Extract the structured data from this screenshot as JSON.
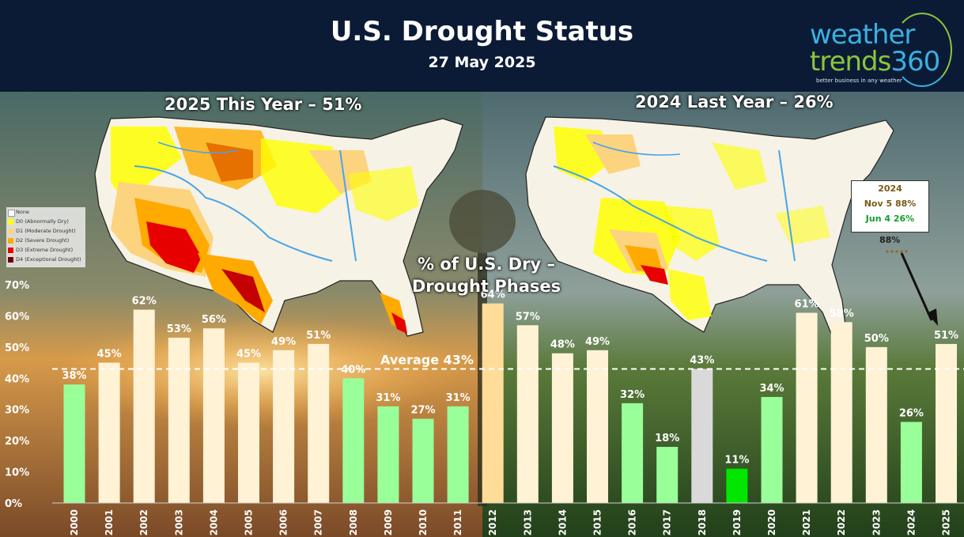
{
  "header": {
    "title": "U.S. Drought Status",
    "subtitle": "27 May 2025",
    "logo_line1": "weather",
    "logo_line2a": "trends",
    "logo_line2b": "360",
    "logo_tagline": "better business in any weather"
  },
  "maps": {
    "left_label": "2025 This Year – 51%",
    "right_label": "2024 Last Year – 26%"
  },
  "legend": {
    "items": [
      {
        "label": "None",
        "color": "#ffffff"
      },
      {
        "label": "D0 (Abnormally Dry)",
        "color": "#ffff00"
      },
      {
        "label": "D1 (Moderate Drought)",
        "color": "#fcd37f"
      },
      {
        "label": "D2 (Severe Drought)",
        "color": "#ffaa00"
      },
      {
        "label": "D3 (Extreme Drought)",
        "color": "#e60000"
      },
      {
        "label": "D4 (Exceptional Drought)",
        "color": "#730000"
      }
    ]
  },
  "callout": {
    "year": "2024",
    "line1": "Nov 5 88%",
    "line2": "Jun 4 26%",
    "peak_label": "88%"
  },
  "chart_data": {
    "type": "bar",
    "title": "% of U.S. Dry – Drought Phases",
    "categories": [
      "2000",
      "2001",
      "2002",
      "2003",
      "2004",
      "2005",
      "2006",
      "2007",
      "2008",
      "2009",
      "2010",
      "2011",
      "2012",
      "2013",
      "2014",
      "2015",
      "2016",
      "2017",
      "2018",
      "2019",
      "2020",
      "2021",
      "2022",
      "2023",
      "2024",
      "2025"
    ],
    "values": [
      38,
      45,
      62,
      53,
      56,
      45,
      49,
      51,
      40,
      31,
      27,
      31,
      64,
      57,
      48,
      49,
      32,
      18,
      43,
      11,
      34,
      61,
      58,
      50,
      26,
      51
    ],
    "value_labels": [
      "38%",
      "45%",
      "62%",
      "53%",
      "56%",
      "45%",
      "49%",
      "51%",
      "40%",
      "31%",
      "27%",
      "31%",
      "64%",
      "57%",
      "48%",
      "49%",
      "32%",
      "18%",
      "43%",
      "11%",
      "34%",
      "61%",
      "58%",
      "50%",
      "26%",
      "51%"
    ],
    "bar_colors": [
      "#99ff99",
      "#fff2d5",
      "#fff2d5",
      "#fff2d5",
      "#fff2d5",
      "#fff2d5",
      "#fff2d5",
      "#fff2d5",
      "#99ff99",
      "#99ff99",
      "#99ff99",
      "#99ff99",
      "#ffdd99",
      "#fff2d5",
      "#fff2d5",
      "#fff2d5",
      "#99ff99",
      "#99ff99",
      "#d9d9d9",
      "#00e600",
      "#99ff99",
      "#fff2d5",
      "#fff2d5",
      "#fff2d5",
      "#99ff99",
      "#fff2d5"
    ],
    "yticks": [
      0,
      10,
      20,
      30,
      40,
      50,
      60,
      70
    ],
    "ytick_labels": [
      "0%",
      "10%",
      "20%",
      "30%",
      "40%",
      "50%",
      "60%",
      "70%"
    ],
    "ylim": [
      0,
      70
    ],
    "average": 43,
    "average_label": "Average 43%",
    "legend": "none"
  }
}
